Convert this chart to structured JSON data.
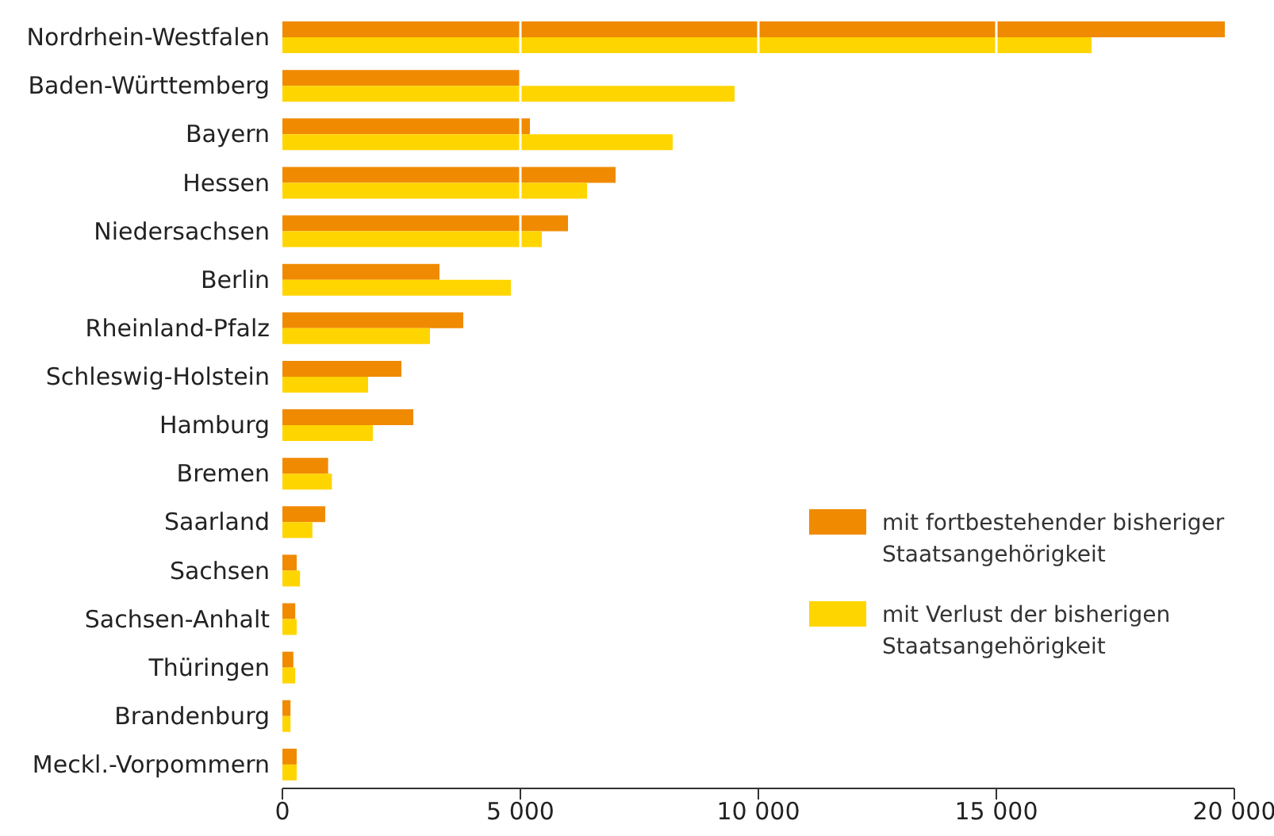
{
  "chart_data": {
    "type": "bar",
    "orientation": "horizontal",
    "categories": [
      "Nordrhein-Westfalen",
      "Baden-Württemberg",
      "Bayern",
      "Hessen",
      "Niedersachsen",
      "Berlin",
      "Rheinland-Pfalz",
      "Schleswig-Holstein",
      "Hamburg",
      "Bremen",
      "Saarland",
      "Sachsen",
      "Sachsen-Anhalt",
      "Thüringen",
      "Brandenburg",
      "Meckl.-Vorpommern"
    ],
    "series": [
      {
        "name": "mit fortbestehender bisheriger Staatsangehörigkeit",
        "color": "#f08a00",
        "values": [
          19800,
          5000,
          5200,
          7000,
          6000,
          3300,
          3800,
          2500,
          2750,
          960,
          900,
          300,
          270,
          230,
          170,
          300
        ]
      },
      {
        "name": "mit Verlust der bisherigen Staatsangehörigkeit",
        "color": "#ffd500",
        "values": [
          17000,
          9500,
          8200,
          6400,
          5450,
          4800,
          3100,
          1800,
          1900,
          1040,
          630,
          370,
          300,
          270,
          170,
          300
        ]
      }
    ],
    "xlim": [
      0,
      20000
    ],
    "xticks": [
      {
        "value": 0,
        "label": "0"
      },
      {
        "value": 5000,
        "label": "5 000"
      },
      {
        "value": 10000,
        "label": "10 000"
      },
      {
        "value": 15000,
        "label": "15 000"
      },
      {
        "value": 20000,
        "label": "20 000"
      }
    ],
    "grid": "x",
    "legend": "right"
  }
}
